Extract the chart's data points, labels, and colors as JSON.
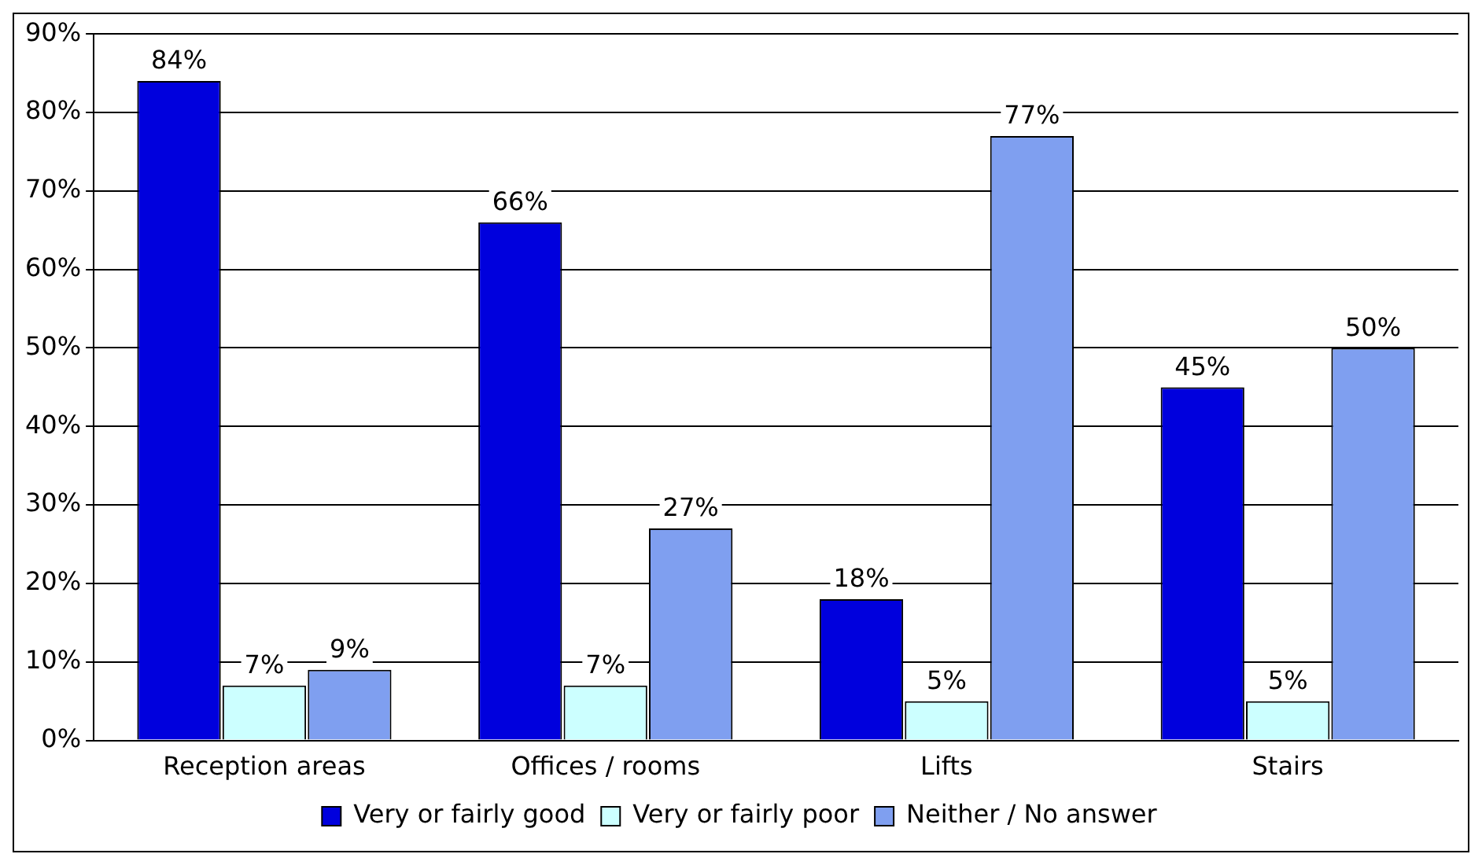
{
  "chart_data": {
    "type": "bar",
    "categories": [
      "Reception areas",
      "Offices / rooms",
      "Lifts",
      "Stairs"
    ],
    "series": [
      {
        "name": "Very or fairly good",
        "color": "#0000dd",
        "values": [
          84,
          66,
          18,
          45
        ],
        "value_labels": [
          "84%",
          "66%",
          "18%",
          "45%"
        ]
      },
      {
        "name": "Very or fairly poor",
        "color": "#ccffff",
        "values": [
          7,
          7,
          5,
          5
        ],
        "value_labels": [
          "7%",
          "7%",
          "5%",
          "5%"
        ]
      },
      {
        "name": "Neither / No answer",
        "color": "#7f9ff0",
        "values": [
          9,
          27,
          77,
          50
        ],
        "value_labels": [
          "9%",
          "27%",
          "77%",
          "50%"
        ]
      }
    ],
    "ylim": [
      0,
      90
    ],
    "yticks": [
      {
        "value": 0,
        "label": "0%"
      },
      {
        "value": 10,
        "label": "10%"
      },
      {
        "value": 20,
        "label": "20%"
      },
      {
        "value": 30,
        "label": "30%"
      },
      {
        "value": 40,
        "label": "40%"
      },
      {
        "value": 50,
        "label": "50%"
      },
      {
        "value": 60,
        "label": "60%"
      },
      {
        "value": 70,
        "label": "70%"
      },
      {
        "value": 80,
        "label": "80%"
      },
      {
        "value": 90,
        "label": "90%"
      }
    ],
    "grid": "y",
    "legend": "bottom"
  }
}
